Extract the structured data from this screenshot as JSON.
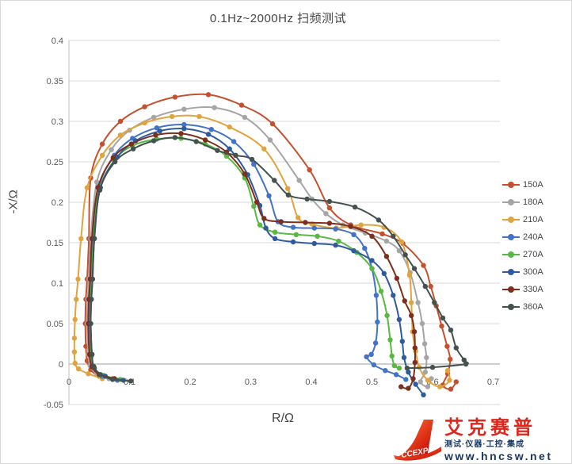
{
  "title": "0.1Hz~2000Hz 扫频测试",
  "chart_data": {
    "type": "line",
    "subtype": "nyquist-impedance-scatter-line",
    "title": "0.1Hz~2000Hz 扫频测试",
    "xlabel": "R/Ω",
    "ylabel": "-X/Ω",
    "xlim": [
      0,
      0.7
    ],
    "ylim": [
      -0.05,
      0.4
    ],
    "x_ticks": [
      0,
      0.1,
      0.2,
      0.3,
      0.4,
      0.5,
      0.6,
      0.7
    ],
    "y_ticks": [
      -0.05,
      0,
      0.05,
      0.1,
      0.15,
      0.2,
      0.25,
      0.3,
      0.35,
      0.4
    ],
    "grid": "horizontal gridlines only",
    "legend_position": "right",
    "series": [
      {
        "name": "150A",
        "color": "#c3512f",
        "points": [
          [
            0.072,
            -0.018
          ],
          [
            0.05,
            -0.015
          ],
          [
            0.036,
            -0.007
          ],
          [
            0.03,
            0.004
          ],
          [
            0.028,
            0.022
          ],
          [
            0.027,
            0.05
          ],
          [
            0.028,
            0.08
          ],
          [
            0.03,
            0.105
          ],
          [
            0.033,
            0.155
          ],
          [
            0.036,
            0.23
          ],
          [
            0.055,
            0.272
          ],
          [
            0.085,
            0.3
          ],
          [
            0.125,
            0.318
          ],
          [
            0.175,
            0.33
          ],
          [
            0.23,
            0.333
          ],
          [
            0.285,
            0.32
          ],
          [
            0.336,
            0.297
          ],
          [
            0.397,
            0.24
          ],
          [
            0.43,
            0.193
          ],
          [
            0.465,
            0.172
          ],
          [
            0.517,
            0.161
          ],
          [
            0.551,
            0.149
          ],
          [
            0.585,
            0.122
          ],
          [
            0.597,
            0.096
          ],
          [
            0.606,
            0.072
          ],
          [
            0.615,
            0.047
          ],
          [
            0.624,
            0.022
          ],
          [
            0.629,
            0.006
          ],
          [
            0.625,
            -0.012
          ],
          [
            0.617,
            -0.026
          ],
          [
            0.63,
            -0.031
          ],
          [
            0.639,
            -0.022
          ]
        ]
      },
      {
        "name": "180A",
        "color": "#a5a5a5",
        "points": [
          [
            0.066,
            -0.018
          ],
          [
            0.046,
            -0.012
          ],
          [
            0.035,
            -0.002
          ],
          [
            0.032,
            0.012
          ],
          [
            0.03,
            0.05
          ],
          [
            0.031,
            0.08
          ],
          [
            0.033,
            0.105
          ],
          [
            0.036,
            0.155
          ],
          [
            0.046,
            0.225
          ],
          [
            0.07,
            0.265
          ],
          [
            0.1,
            0.289
          ],
          [
            0.14,
            0.305
          ],
          [
            0.19,
            0.315
          ],
          [
            0.24,
            0.317
          ],
          [
            0.29,
            0.305
          ],
          [
            0.332,
            0.277
          ],
          [
            0.38,
            0.227
          ],
          [
            0.401,
            0.204
          ],
          [
            0.424,
            0.186
          ],
          [
            0.452,
            0.172
          ],
          [
            0.489,
            0.162
          ],
          [
            0.524,
            0.152
          ],
          [
            0.545,
            0.14
          ],
          [
            0.563,
            0.113
          ],
          [
            0.576,
            0.076
          ],
          [
            0.583,
            0.05
          ],
          [
            0.587,
            0.025
          ],
          [
            0.59,
            0.008
          ],
          [
            0.588,
            -0.01
          ],
          [
            0.58,
            -0.022
          ],
          [
            0.592,
            -0.028
          ],
          [
            0.598,
            -0.018
          ]
        ]
      },
      {
        "name": "210A",
        "color": "#e0a33e",
        "points": [
          [
            0.055,
            -0.018
          ],
          [
            0.032,
            -0.012
          ],
          [
            0.016,
            -0.006
          ],
          [
            0.01,
            0.001
          ],
          [
            0.009,
            0.015
          ],
          [
            0.009,
            0.032
          ],
          [
            0.01,
            0.055
          ],
          [
            0.012,
            0.08
          ],
          [
            0.015,
            0.105
          ],
          [
            0.02,
            0.155
          ],
          [
            0.03,
            0.218
          ],
          [
            0.055,
            0.258
          ],
          [
            0.085,
            0.283
          ],
          [
            0.125,
            0.298
          ],
          [
            0.17,
            0.306
          ],
          [
            0.215,
            0.306
          ],
          [
            0.265,
            0.293
          ],
          [
            0.322,
            0.266
          ],
          [
            0.361,
            0.217
          ],
          [
            0.378,
            0.181
          ],
          [
            0.401,
            0.173
          ],
          [
            0.441,
            0.168
          ],
          [
            0.482,
            0.172
          ],
          [
            0.52,
            0.169
          ],
          [
            0.549,
            0.151
          ],
          [
            0.562,
            0.11
          ],
          [
            0.565,
            0.076
          ],
          [
            0.567,
            0.04
          ],
          [
            0.572,
            0.016
          ],
          [
            0.578,
            -0.004
          ],
          [
            0.592,
            -0.02
          ],
          [
            0.612,
            -0.028
          ],
          [
            0.628,
            -0.02
          ],
          [
            0.625,
            -0.008
          ]
        ]
      },
      {
        "name": "240A",
        "color": "#4472c4",
        "points": [
          [
            0.08,
            -0.02
          ],
          [
            0.055,
            -0.015
          ],
          [
            0.04,
            -0.004
          ],
          [
            0.036,
            0.012
          ],
          [
            0.034,
            0.05
          ],
          [
            0.035,
            0.08
          ],
          [
            0.037,
            0.105
          ],
          [
            0.04,
            0.155
          ],
          [
            0.05,
            0.22
          ],
          [
            0.075,
            0.258
          ],
          [
            0.105,
            0.279
          ],
          [
            0.145,
            0.292
          ],
          [
            0.19,
            0.296
          ],
          [
            0.235,
            0.29
          ],
          [
            0.272,
            0.275
          ],
          [
            0.305,
            0.247
          ],
          [
            0.33,
            0.208
          ],
          [
            0.345,
            0.176
          ],
          [
            0.37,
            0.169
          ],
          [
            0.405,
            0.168
          ],
          [
            0.44,
            0.167
          ],
          [
            0.47,
            0.16
          ],
          [
            0.488,
            0.143
          ],
          [
            0.5,
            0.118
          ],
          [
            0.507,
            0.085
          ],
          [
            0.509,
            0.052
          ],
          [
            0.506,
            0.026
          ],
          [
            0.499,
            0.012
          ],
          [
            0.491,
            0.009
          ],
          [
            0.503,
            -0.001
          ],
          [
            0.522,
            -0.008
          ],
          [
            0.54,
            -0.013
          ],
          [
            0.556,
            -0.019
          ]
        ]
      },
      {
        "name": "270A",
        "color": "#58b842",
        "points": [
          [
            0.085,
            -0.019
          ],
          [
            0.057,
            -0.014
          ],
          [
            0.04,
            -0.004
          ],
          [
            0.037,
            0.01
          ],
          [
            0.035,
            0.05
          ],
          [
            0.036,
            0.08
          ],
          [
            0.038,
            0.105
          ],
          [
            0.041,
            0.155
          ],
          [
            0.05,
            0.215
          ],
          [
            0.075,
            0.252
          ],
          [
            0.105,
            0.27
          ],
          [
            0.145,
            0.278
          ],
          [
            0.185,
            0.279
          ],
          [
            0.225,
            0.272
          ],
          [
            0.26,
            0.257
          ],
          [
            0.29,
            0.23
          ],
          [
            0.305,
            0.195
          ],
          [
            0.315,
            0.172
          ],
          [
            0.34,
            0.163
          ],
          [
            0.375,
            0.16
          ],
          [
            0.41,
            0.158
          ],
          [
            0.445,
            0.152
          ],
          [
            0.475,
            0.138
          ],
          [
            0.5,
            0.118
          ],
          [
            0.515,
            0.09
          ],
          [
            0.525,
            0.06
          ],
          [
            0.53,
            0.03
          ],
          [
            0.533,
            0.01
          ],
          [
            0.537,
            -0.002
          ],
          [
            0.545,
            -0.005
          ]
        ]
      },
      {
        "name": "300A",
        "color": "#2f5b9d",
        "points": [
          [
            0.09,
            -0.02
          ],
          [
            0.06,
            -0.015
          ],
          [
            0.042,
            -0.005
          ],
          [
            0.038,
            0.012
          ],
          [
            0.036,
            0.05
          ],
          [
            0.037,
            0.08
          ],
          [
            0.039,
            0.105
          ],
          [
            0.042,
            0.155
          ],
          [
            0.052,
            0.218
          ],
          [
            0.08,
            0.256
          ],
          [
            0.11,
            0.276
          ],
          [
            0.15,
            0.288
          ],
          [
            0.19,
            0.291
          ],
          [
            0.23,
            0.284
          ],
          [
            0.265,
            0.266
          ],
          [
            0.295,
            0.234
          ],
          [
            0.315,
            0.196
          ],
          [
            0.325,
            0.168
          ],
          [
            0.34,
            0.155
          ],
          [
            0.37,
            0.151
          ],
          [
            0.405,
            0.149
          ],
          [
            0.44,
            0.147
          ],
          [
            0.47,
            0.14
          ],
          [
            0.5,
            0.128
          ],
          [
            0.52,
            0.112
          ],
          [
            0.535,
            0.085
          ],
          [
            0.545,
            0.055
          ],
          [
            0.55,
            0.028
          ],
          [
            0.553,
            0.008
          ],
          [
            0.56,
            -0.01
          ],
          [
            0.572,
            -0.025
          ],
          [
            0.585,
            -0.038
          ]
        ]
      },
      {
        "name": "330A",
        "color": "#7d2e1d",
        "points": [
          [
            0.075,
            -0.018
          ],
          [
            0.05,
            -0.013
          ],
          [
            0.038,
            -0.003
          ],
          [
            0.034,
            0.012
          ],
          [
            0.032,
            0.05
          ],
          [
            0.033,
            0.08
          ],
          [
            0.035,
            0.105
          ],
          [
            0.038,
            0.155
          ],
          [
            0.048,
            0.218
          ],
          [
            0.073,
            0.255
          ],
          [
            0.103,
            0.272
          ],
          [
            0.143,
            0.283
          ],
          [
            0.185,
            0.285
          ],
          [
            0.225,
            0.277
          ],
          [
            0.26,
            0.262
          ],
          [
            0.29,
            0.235
          ],
          [
            0.31,
            0.2
          ],
          [
            0.322,
            0.18
          ],
          [
            0.35,
            0.176
          ],
          [
            0.39,
            0.175
          ],
          [
            0.43,
            0.174
          ],
          [
            0.465,
            0.17
          ],
          [
            0.5,
            0.158
          ],
          [
            0.524,
            0.133
          ],
          [
            0.541,
            0.106
          ],
          [
            0.554,
            0.078
          ],
          [
            0.565,
            0.06
          ],
          [
            0.57,
            0.04
          ],
          [
            0.571,
            0.02
          ],
          [
            0.571,
            0.002
          ],
          [
            0.568,
            -0.018
          ],
          [
            0.56,
            -0.03
          ],
          [
            0.548,
            -0.028
          ]
        ]
      },
      {
        "name": "360A",
        "color": "#44524f",
        "points": [
          [
            0.102,
            -0.021
          ],
          [
            0.072,
            -0.019
          ],
          [
            0.052,
            -0.013
          ],
          [
            0.041,
            -0.003
          ],
          [
            0.038,
            0.012
          ],
          [
            0.036,
            0.05
          ],
          [
            0.037,
            0.08
          ],
          [
            0.039,
            0.105
          ],
          [
            0.042,
            0.155
          ],
          [
            0.051,
            0.215
          ],
          [
            0.076,
            0.25
          ],
          [
            0.106,
            0.266
          ],
          [
            0.14,
            0.276
          ],
          [
            0.175,
            0.28
          ],
          [
            0.21,
            0.275
          ],
          [
            0.245,
            0.264
          ],
          [
            0.275,
            0.258
          ],
          [
            0.302,
            0.253
          ],
          [
            0.339,
            0.227
          ],
          [
            0.362,
            0.209
          ],
          [
            0.393,
            0.204
          ],
          [
            0.43,
            0.201
          ],
          [
            0.472,
            0.194
          ],
          [
            0.511,
            0.178
          ],
          [
            0.535,
            0.158
          ],
          [
            0.555,
            0.135
          ],
          [
            0.57,
            0.118
          ],
          [
            0.588,
            0.096
          ],
          [
            0.603,
            0.076
          ],
          [
            0.617,
            0.057
          ],
          [
            0.63,
            0.042
          ],
          [
            0.639,
            0.02
          ],
          [
            0.652,
            0.005
          ],
          [
            0.655,
            0.0
          ],
          [
            0.6,
            -0.004
          ],
          [
            0.558,
            -0.005
          ]
        ]
      }
    ]
  },
  "watermark": {
    "brand_letter": "A",
    "brand_sub": "CCEXP",
    "brand_name": "艾克赛普",
    "tagline": "测试·仪器·工控·集成",
    "website": "www.hncsw.net"
  }
}
